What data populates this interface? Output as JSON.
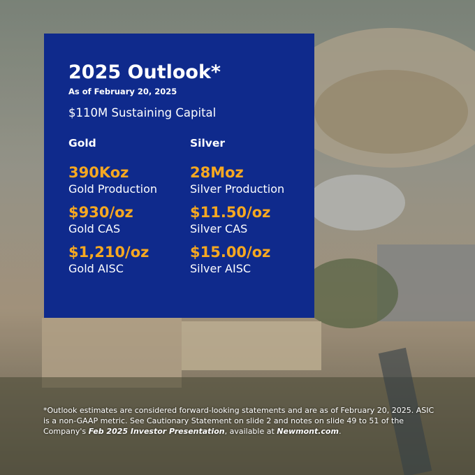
{
  "header": {
    "title": "2025 Outlook*",
    "date": "As of February 20, 2025",
    "capital": "$110M Sustaining Capital"
  },
  "columns": [
    {
      "heading": "Gold",
      "items": [
        {
          "value": "390Koz",
          "label": "Gold Production"
        },
        {
          "value": "$930/oz",
          "label": "Gold CAS"
        },
        {
          "value": "$1,210/oz",
          "label": "Gold AISC"
        }
      ]
    },
    {
      "heading": "Silver",
      "items": [
        {
          "value": "28Moz",
          "label": "Silver Production"
        },
        {
          "value": "$11.50/oz",
          "label": "Silver CAS"
        },
        {
          "value": "$15.00/oz",
          "label": "Silver AISC"
        }
      ]
    }
  ],
  "footnote": {
    "segments": [
      "*Outlook estimates are considered forward-looking statements and are as of February 20, 2025. ASIC is a non-GAAP metric. See Cautionary Statement on slide 2 and notes on slide 49 to 51 of the Company's ",
      "Feb 2025 Investor Presentation",
      ", available at ",
      "Newmont.com",
      "."
    ]
  }
}
